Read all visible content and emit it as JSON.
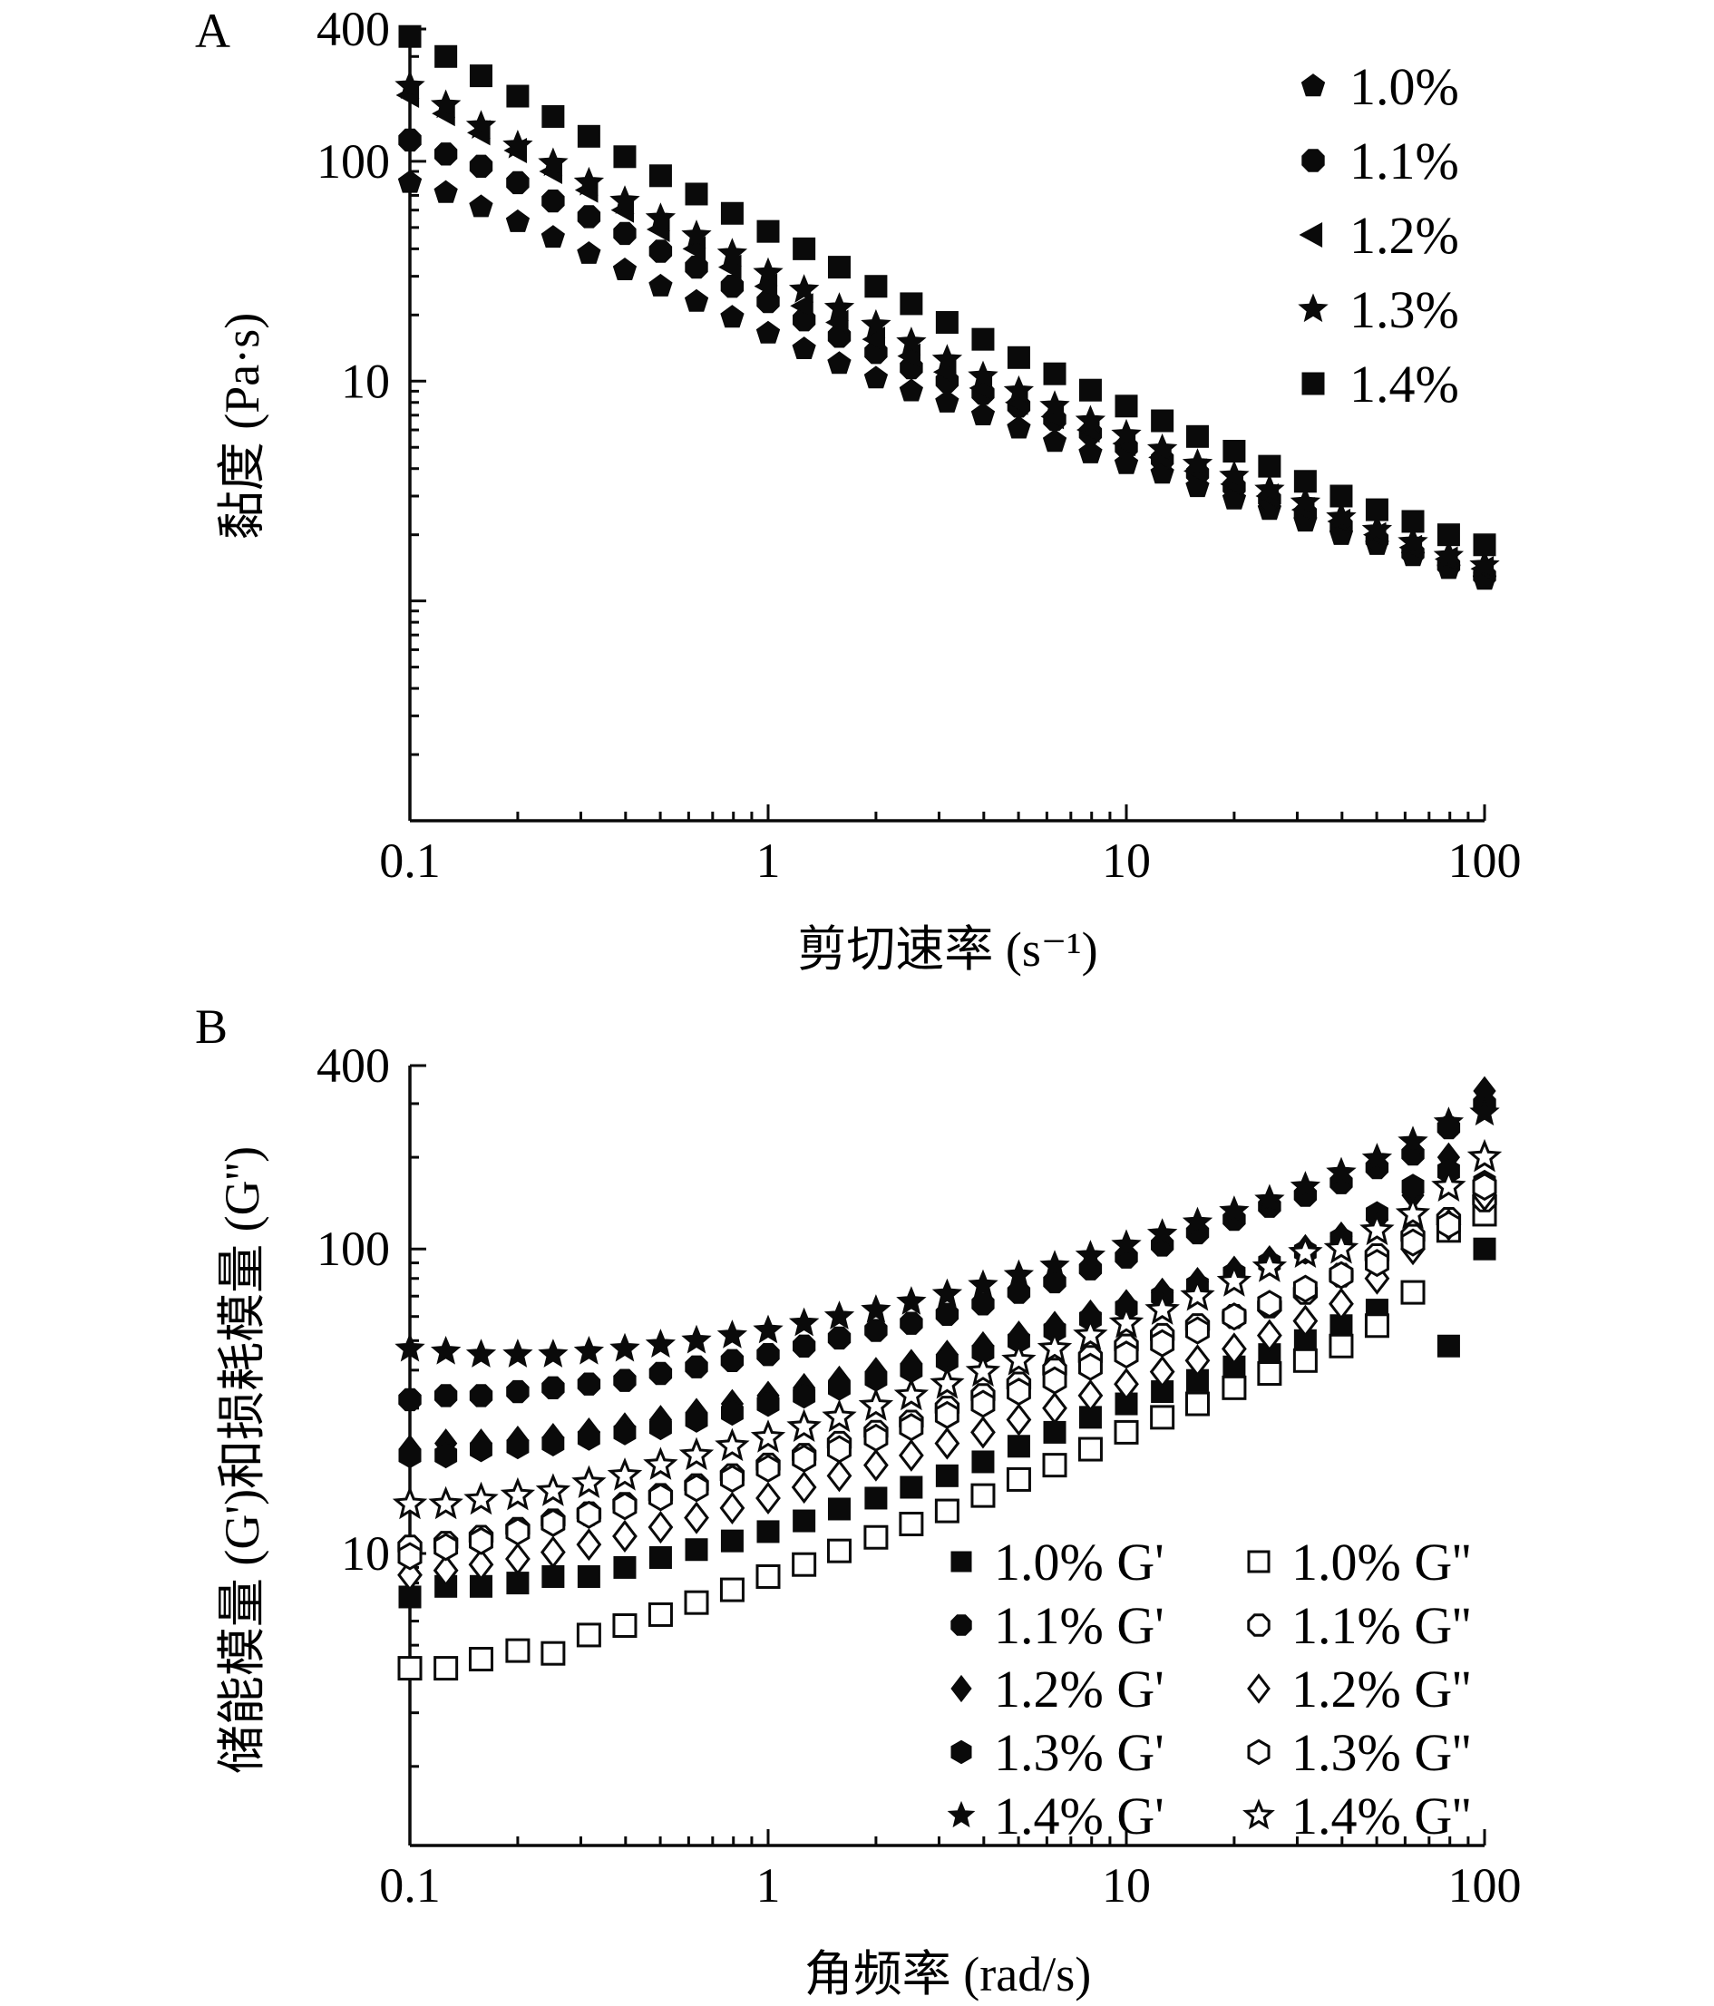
{
  "chart_data": [
    {
      "panel": "A",
      "type": "scatter",
      "xscale": "log",
      "yscale": "log",
      "xlabel": "剪切速率 (s⁻¹)",
      "ylabel": "黏度 (Pa·s)",
      "xlim": [
        0.1,
        100
      ],
      "ylim": [
        0.1,
        400
      ],
      "xticks": [
        "0.1",
        "1",
        "10",
        "100"
      ],
      "xtick_values": [
        0.1,
        1,
        10,
        100
      ],
      "yticks": [
        "10",
        "100",
        "400"
      ],
      "ytick_values": [
        10,
        100,
        400
      ],
      "legend_position": "top-right",
      "x": [
        0.1,
        0.126,
        0.158,
        0.2,
        0.251,
        0.316,
        0.398,
        0.501,
        0.631,
        0.794,
        1.0,
        1.26,
        1.58,
        2.0,
        2.51,
        3.16,
        3.98,
        5.01,
        6.31,
        7.94,
        10.0,
        12.6,
        15.8,
        20.0,
        25.1,
        31.6,
        39.8,
        50.1,
        63.1,
        79.4,
        100
      ],
      "series": [
        {
          "name": "1.0%",
          "marker": "pentagon-filled",
          "values": [
            80,
            72,
            62,
            53,
            45,
            38,
            32,
            27,
            23,
            19.5,
            16.5,
            14,
            12,
            10.3,
            9,
            8,
            7,
            6.1,
            5.3,
            4.7,
            4.2,
            3.8,
            3.3,
            2.9,
            2.6,
            2.3,
            2.0,
            1.8,
            1.6,
            1.4,
            1.25
          ]
        },
        {
          "name": "1.1%",
          "marker": "octagon-filled",
          "values": [
            125,
            108,
            95,
            80,
            66,
            56,
            47,
            39,
            33,
            27,
            23,
            19,
            16,
            13.5,
            11.5,
            10,
            8.8,
            7.7,
            6.7,
            5.8,
            5.0,
            4.4,
            3.8,
            3.3,
            2.9,
            2.5,
            2.2,
            1.9,
            1.65,
            1.45,
            1.3
          ]
        },
        {
          "name": "1.2%",
          "marker": "triangle-left-filled",
          "values": [
            200,
            165,
            135,
            112,
            90,
            74,
            60,
            49,
            40,
            33,
            27,
            22,
            18.5,
            15.5,
            13,
            11,
            9.3,
            8,
            6.9,
            6.0,
            5.2,
            4.5,
            3.9,
            3.4,
            3.0,
            2.6,
            2.3,
            2.0,
            1.75,
            1.55,
            1.4
          ]
        },
        {
          "name": "1.3%",
          "marker": "star-filled",
          "values": [
            220,
            180,
            145,
            118,
            98,
            80,
            66,
            55,
            46,
            38,
            31,
            26,
            21.5,
            18,
            15,
            12.5,
            10.5,
            9,
            7.7,
            6.6,
            5.7,
            4.9,
            4.2,
            3.7,
            3.2,
            2.8,
            2.4,
            2.1,
            1.85,
            1.6,
            1.45
          ]
        },
        {
          "name": "1.4%",
          "marker": "square-filled",
          "values": [
            370,
            300,
            245,
            198,
            160,
            130,
            105,
            86,
            71,
            58,
            48,
            40,
            33,
            27,
            22.5,
            18.5,
            15.5,
            12.8,
            10.8,
            9.1,
            7.7,
            6.6,
            5.6,
            4.8,
            4.1,
            3.5,
            3.0,
            2.6,
            2.3,
            2.0,
            1.8
          ]
        }
      ]
    },
    {
      "panel": "B",
      "type": "scatter",
      "xscale": "log",
      "yscale": "log",
      "xlabel": "角频率 (rad/s)",
      "ylabel": "储能模量 (G')和损耗模量 (G'')",
      "xlim": [
        0.1,
        100
      ],
      "ylim": [
        1.1,
        400
      ],
      "xticks": [
        "0.1",
        "1",
        "10",
        "100"
      ],
      "xtick_values": [
        0.1,
        1,
        10,
        100
      ],
      "yticks": [
        "10",
        "100",
        "400"
      ],
      "ytick_values": [
        10,
        100,
        400
      ],
      "legend_position": "bottom-right",
      "x": [
        0.1,
        0.126,
        0.158,
        0.2,
        0.251,
        0.316,
        0.398,
        0.501,
        0.631,
        0.794,
        1.0,
        1.26,
        1.58,
        2.0,
        2.51,
        3.16,
        3.98,
        5.01,
        6.31,
        7.94,
        10.0,
        12.6,
        15.8,
        20.0,
        25.1,
        31.6,
        39.8,
        50.1,
        63.1,
        79.4,
        100
      ],
      "series": [
        {
          "name": "1.0% G'",
          "marker": "square-filled",
          "values": [
            7.2,
            7.8,
            7.8,
            8.0,
            8.4,
            8.4,
            9.0,
            9.7,
            10.3,
            11.0,
            11.8,
            12.8,
            14.0,
            15.2,
            16.5,
            18.0,
            20.0,
            22.5,
            25,
            28,
            31,
            34,
            37,
            41,
            45,
            50,
            56,
            63,
            72,
            48,
            100
          ]
        },
        {
          "name": "1.0% G''",
          "marker": "square-open",
          "values": [
            4.2,
            4.2,
            4.5,
            4.8,
            4.7,
            5.4,
            5.8,
            6.3,
            6.9,
            7.6,
            8.4,
            9.2,
            10.2,
            11.3,
            12.5,
            13.8,
            15.5,
            17.5,
            19.5,
            22,
            25,
            28,
            31,
            35,
            39,
            43,
            48,
            56,
            72,
            115,
            130
          ]
        },
        {
          "name": "1.1% G'",
          "marker": "octagon-filled",
          "values": [
            32,
            33,
            33,
            34,
            35,
            36,
            37,
            39,
            41,
            43,
            45,
            48,
            51,
            54,
            57,
            61,
            66,
            72,
            78,
            86,
            94,
            103,
            113,
            125,
            138,
            150,
            165,
            185,
            205,
            250,
            300
          ]
        },
        {
          "name": "1.1% G''",
          "marker": "octagon-open",
          "values": [
            10.5,
            10.8,
            11.3,
            12,
            12.8,
            13.5,
            14.5,
            15.5,
            16.7,
            18,
            19.5,
            21,
            23,
            25,
            27,
            30,
            33,
            36,
            40,
            44,
            48,
            52,
            56,
            60,
            65,
            72,
            82,
            95,
            110,
            125,
            145
          ]
        },
        {
          "name": "1.2% G'",
          "marker": "diamond-filled",
          "values": [
            22,
            23,
            23,
            23.5,
            24,
            25,
            26,
            27.5,
            29,
            31,
            33,
            35,
            37,
            39.5,
            42,
            45,
            48,
            52,
            56,
            61,
            66,
            72,
            78,
            85,
            92,
            100,
            110,
            125,
            150,
            200,
            330
          ]
        },
        {
          "name": "1.2% G''",
          "marker": "diamond-open",
          "values": [
            8.5,
            8.8,
            9.2,
            9.6,
            10.1,
            10.7,
            11.4,
            12.2,
            13.1,
            14.1,
            15.2,
            16.5,
            18,
            19.5,
            21,
            23,
            25,
            27.5,
            30,
            33,
            36,
            39.5,
            43,
            47,
            52,
            58,
            66,
            80,
            100,
            120,
            150
          ]
        },
        {
          "name": "1.3% G'",
          "marker": "hexagon-filled",
          "values": [
            21,
            21,
            22,
            22.5,
            23,
            24,
            25,
            26,
            27.5,
            29,
            31,
            33,
            35,
            37.5,
            40,
            43,
            46,
            50,
            54,
            59,
            64,
            70,
            76,
            83,
            90,
            98,
            108,
            130,
            160,
            180,
            165
          ]
        },
        {
          "name": "1.3% G''",
          "marker": "hexagon-open",
          "values": [
            9.8,
            10.5,
            11.0,
            11.8,
            12.6,
            13.4,
            14.3,
            15.3,
            16.4,
            17.6,
            19,
            20.5,
            22,
            24,
            26,
            28.5,
            31,
            34,
            37,
            41,
            45,
            49,
            54,
            60,
            66,
            74,
            82,
            90,
            105,
            120,
            160
          ]
        },
        {
          "name": "1.4% G'",
          "marker": "star-filled",
          "values": [
            47,
            46,
            45,
            45,
            45,
            46,
            47,
            48.5,
            50,
            52,
            54,
            57,
            60,
            63,
            67,
            71,
            76,
            82,
            88,
            95,
            103,
            112,
            122,
            133,
            145,
            160,
            178,
            198,
            225,
            260,
            280
          ]
        },
        {
          "name": "1.4% G''",
          "marker": "star-open",
          "values": [
            14.5,
            14.5,
            15,
            15.5,
            16,
            17,
            18,
            19.5,
            21,
            22.5,
            24,
            26,
            28,
            30.5,
            33,
            36,
            39.5,
            43,
            47,
            52,
            57,
            63,
            70,
            78,
            87,
            97,
            100,
            115,
            130,
            160,
            200
          ]
        }
      ]
    }
  ],
  "panels": {
    "a": {
      "label": "A"
    },
    "b": {
      "label": "B"
    }
  },
  "colors": {
    "ink": "#0a0a0a",
    "background": "#ffffff"
  }
}
